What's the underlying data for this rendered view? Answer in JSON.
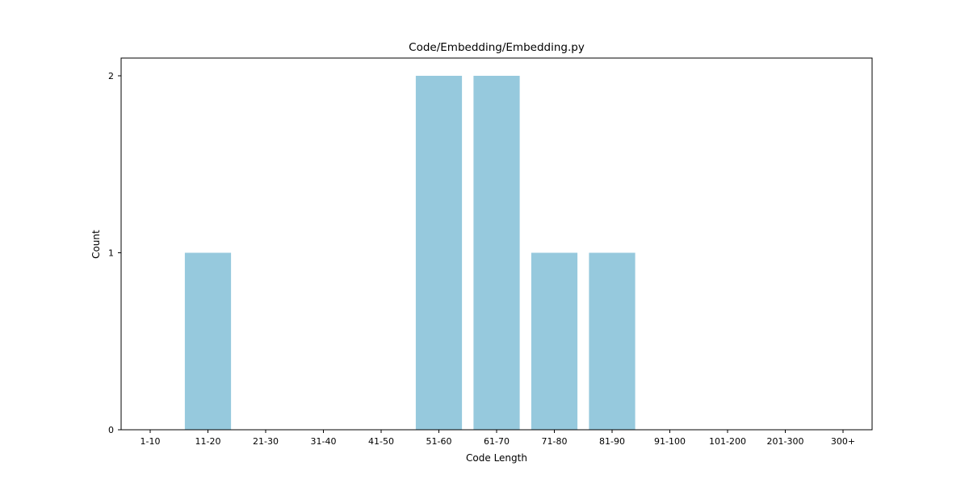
{
  "chart_data": {
    "type": "bar",
    "title": "Code/Embedding/Embedding.py",
    "xlabel": "Code Length",
    "ylabel": "Count",
    "categories": [
      "1-10",
      "11-20",
      "21-30",
      "31-40",
      "41-50",
      "51-60",
      "61-70",
      "71-80",
      "81-90",
      "91-100",
      "101-200",
      "201-300",
      "300+"
    ],
    "values": [
      0,
      1,
      0,
      0,
      0,
      2,
      2,
      1,
      1,
      0,
      0,
      0,
      0
    ],
    "yticks": [
      0,
      1,
      2
    ],
    "ylim": [
      0,
      2.1
    ],
    "grid": false,
    "legend": "none",
    "bar_color": "#96c9dd",
    "axis_color": "#000000"
  }
}
